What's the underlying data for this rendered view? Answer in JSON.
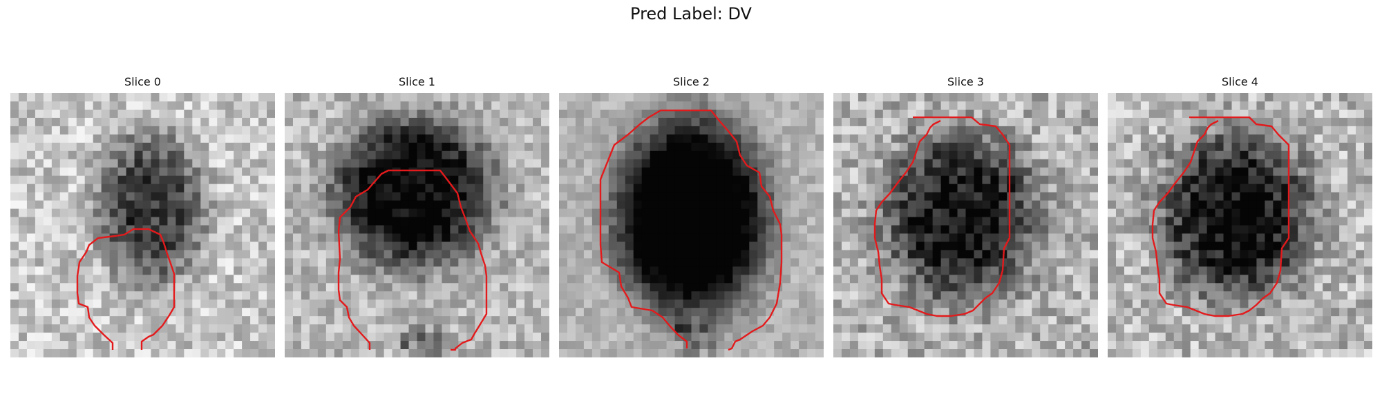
{
  "figure": {
    "title": "Pred Label: DV"
  },
  "colors": {
    "contour": "#e31a1c",
    "background": "#ffffff"
  },
  "panels": [
    {
      "title": "Slice 0"
    },
    {
      "title": "Slice 1"
    },
    {
      "title": "Slice 2"
    },
    {
      "title": "Slice 3"
    },
    {
      "title": "Slice 4"
    }
  ]
}
